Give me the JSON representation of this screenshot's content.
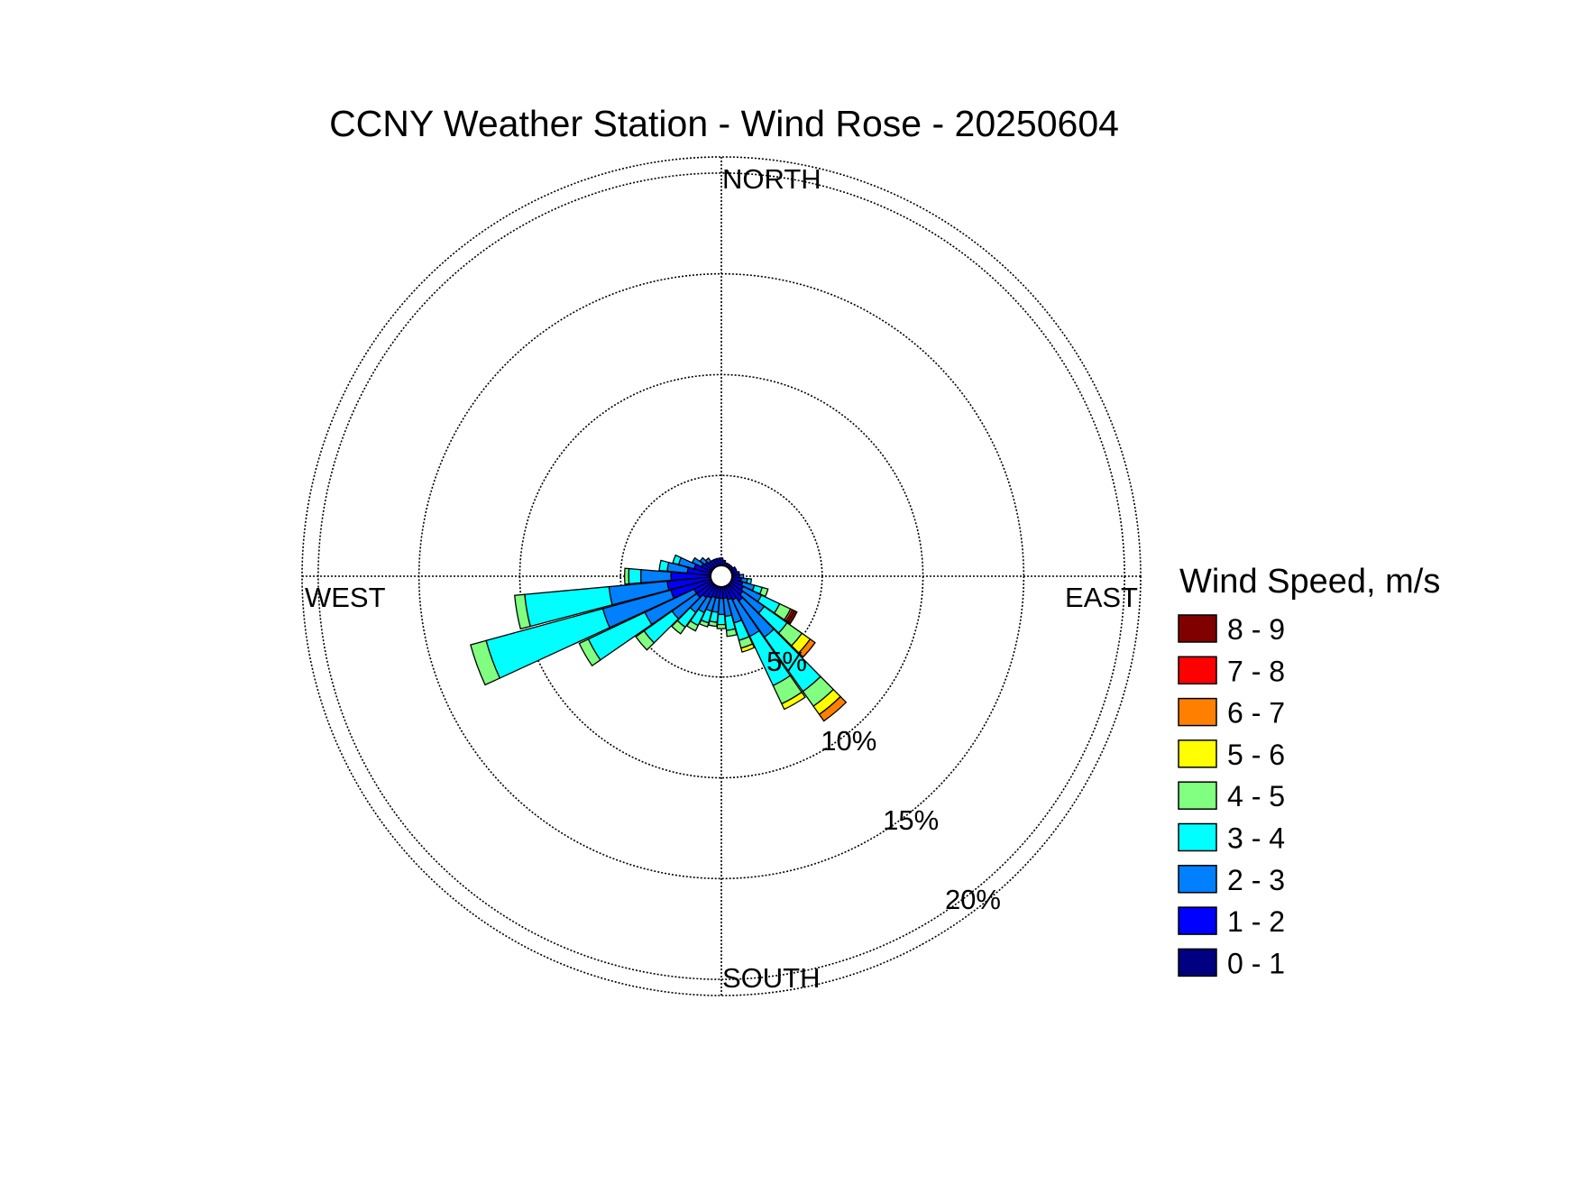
{
  "chart_data": {
    "type": "wind-rose",
    "title": "CCNY Weather Station - Wind Rose - 20250604",
    "directions": {
      "north": "NORTH",
      "south": "SOUTH",
      "east": "EAST",
      "west": "WEST"
    },
    "radial_ticks": [
      "5%",
      "10%",
      "15%",
      "20%"
    ],
    "radial_values": [
      5,
      10,
      15,
      20
    ],
    "radial_max": 20.8,
    "legend_title": "Wind Speed, m/s",
    "speed_bins": [
      {
        "label": "0 - 1",
        "color": "#000080"
      },
      {
        "label": "1 - 2",
        "color": "#0000ff"
      },
      {
        "label": "2 - 3",
        "color": "#0080ff"
      },
      {
        "label": "3 - 4",
        "color": "#00ffff"
      },
      {
        "label": "4 - 5",
        "color": "#80ff80"
      },
      {
        "label": "5 - 6",
        "color": "#ffff00"
      },
      {
        "label": "6 - 7",
        "color": "#ff8000"
      },
      {
        "label": "7 - 8",
        "color": "#ff0000"
      },
      {
        "label": "8 - 9",
        "color": "#800000"
      }
    ],
    "sector_width_deg": 10,
    "sectors": [
      {
        "direction_deg": 0,
        "frequencies": [
          0.5,
          0.4,
          0,
          0,
          0,
          0,
          0,
          0,
          0
        ]
      },
      {
        "direction_deg": 10,
        "frequencies": [
          0.5,
          0.3,
          0,
          0,
          0,
          0,
          0,
          0,
          0
        ]
      },
      {
        "direction_deg": 20,
        "frequencies": [
          0.5,
          0.2,
          0,
          0,
          0,
          0,
          0,
          0,
          0
        ]
      },
      {
        "direction_deg": 30,
        "frequencies": [
          0.5,
          0.2,
          0,
          0,
          0,
          0,
          0,
          0,
          0
        ]
      },
      {
        "direction_deg": 40,
        "frequencies": [
          0.5,
          0.2,
          0,
          0,
          0,
          0,
          0,
          0,
          0
        ]
      },
      {
        "direction_deg": 50,
        "frequencies": [
          0.5,
          0.2,
          0,
          0,
          0,
          0,
          0,
          0,
          0
        ]
      },
      {
        "direction_deg": 60,
        "frequencies": [
          0.5,
          0.3,
          0,
          0,
          0,
          0,
          0,
          0,
          0
        ]
      },
      {
        "direction_deg": 70,
        "frequencies": [
          0.5,
          0.3,
          0,
          0,
          0,
          0,
          0,
          0,
          0
        ]
      },
      {
        "direction_deg": 80,
        "frequencies": [
          0.5,
          0.4,
          0,
          0,
          0,
          0,
          0,
          0,
          0
        ]
      },
      {
        "direction_deg": 90,
        "frequencies": [
          0.5,
          0.4,
          0.2,
          0,
          0,
          0,
          0,
          0,
          0
        ]
      },
      {
        "direction_deg": 100,
        "frequencies": [
          0.5,
          0.5,
          0.3,
          0.2,
          0,
          0,
          0,
          0,
          0
        ]
      },
      {
        "direction_deg": 110,
        "frequencies": [
          0.5,
          0.6,
          0.6,
          0.4,
          0.3,
          0,
          0,
          0,
          0
        ]
      },
      {
        "direction_deg": 120,
        "frequencies": [
          0.5,
          0.7,
          1.0,
          1.0,
          0.6,
          0,
          0.1,
          0.1,
          0.15
        ]
      },
      {
        "direction_deg": 130,
        "frequencies": [
          0.5,
          0.8,
          1.3,
          1.4,
          0.9,
          0.5,
          0.3,
          0,
          0
        ]
      },
      {
        "direction_deg": 140,
        "frequencies": [
          0.5,
          1.0,
          2.2,
          3.3,
          0.9,
          0.5,
          0.4,
          0,
          0
        ]
      },
      {
        "direction_deg": 150,
        "frequencies": [
          0.5,
          0.8,
          2.0,
          2.7,
          1.0,
          0.3,
          0,
          0,
          0
        ]
      },
      {
        "direction_deg": 160,
        "frequencies": [
          0.5,
          0.7,
          1.2,
          0.9,
          0.4,
          0.2,
          0,
          0,
          0
        ]
      },
      {
        "direction_deg": 170,
        "frequencies": [
          0.5,
          0.6,
          0.9,
          0.7,
          0.3,
          0,
          0,
          0,
          0
        ]
      },
      {
        "direction_deg": 180,
        "frequencies": [
          0.5,
          0.6,
          0.8,
          0.5,
          0.2,
          0,
          0,
          0,
          0
        ]
      },
      {
        "direction_deg": 190,
        "frequencies": [
          0.5,
          0.6,
          0.7,
          0.5,
          0.2,
          0,
          0,
          0,
          0
        ]
      },
      {
        "direction_deg": 200,
        "frequencies": [
          0.5,
          0.6,
          0.7,
          0.6,
          0.2,
          0,
          0,
          0,
          0
        ]
      },
      {
        "direction_deg": 210,
        "frequencies": [
          0.5,
          0.7,
          0.8,
          0.7,
          0.3,
          0,
          0,
          0,
          0
        ]
      },
      {
        "direction_deg": 220,
        "frequencies": [
          0.5,
          0.8,
          0.9,
          0.9,
          0.4,
          0,
          0,
          0,
          0
        ]
      },
      {
        "direction_deg": 230,
        "frequencies": [
          0.5,
          1.0,
          1.5,
          1.7,
          0.5,
          0,
          0,
          0,
          0
        ]
      },
      {
        "direction_deg": 240,
        "frequencies": [
          0.5,
          1.0,
          2.7,
          3.1,
          0.5,
          0,
          0,
          0,
          0
        ]
      },
      {
        "direction_deg": 250,
        "frequencies": [
          0.5,
          2.1,
          3.5,
          6.0,
          0.8,
          0,
          0,
          0,
          0
        ]
      },
      {
        "direction_deg": 260,
        "frequencies": [
          0.5,
          2.2,
          2.9,
          4.2,
          0.5,
          0,
          0,
          0,
          0
        ]
      },
      {
        "direction_deg": 270,
        "frequencies": [
          0.5,
          2.0,
          1.5,
          0.6,
          0.2,
          0,
          0,
          0,
          0
        ]
      },
      {
        "direction_deg": 280,
        "frequencies": [
          0.5,
          1.2,
          1.0,
          0.4,
          0,
          0,
          0,
          0,
          0
        ]
      },
      {
        "direction_deg": 290,
        "frequencies": [
          0.5,
          0.9,
          0.8,
          0.3,
          0,
          0,
          0,
          0,
          0
        ]
      },
      {
        "direction_deg": 300,
        "frequencies": [
          0.5,
          0.6,
          0.5,
          0,
          0,
          0,
          0,
          0,
          0
        ]
      },
      {
        "direction_deg": 310,
        "frequencies": [
          0.5,
          0.5,
          0.3,
          0,
          0,
          0,
          0,
          0,
          0
        ]
      },
      {
        "direction_deg": 320,
        "frequencies": [
          0.5,
          0.4,
          0.2,
          0,
          0,
          0,
          0,
          0,
          0
        ]
      },
      {
        "direction_deg": 330,
        "frequencies": [
          0.5,
          0.4,
          0,
          0,
          0,
          0,
          0,
          0,
          0
        ]
      },
      {
        "direction_deg": 340,
        "frequencies": [
          0.5,
          0.4,
          0,
          0,
          0,
          0,
          0,
          0,
          0
        ]
      },
      {
        "direction_deg": 350,
        "frequencies": [
          0.5,
          0.4,
          0,
          0,
          0,
          0,
          0,
          0,
          0
        ]
      }
    ]
  }
}
